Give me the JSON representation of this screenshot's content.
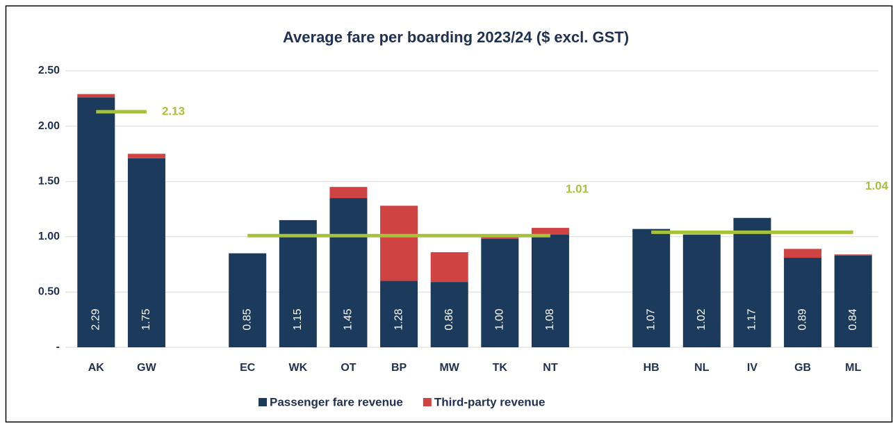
{
  "chart_data": {
    "type": "stacked_bar",
    "title": "Average fare per boarding 2023/24 ($ excl. GST)",
    "categories": [
      "AK",
      "GW",
      null,
      "EC",
      "WK",
      "OT",
      "BP",
      "MW",
      "TK",
      "NT",
      null,
      "HB",
      "NL",
      "IV",
      "GB",
      "ML"
    ],
    "series": [
      {
        "name": "Passenger fare revenue",
        "color": "#1b3a5c",
        "values": [
          2.26,
          1.71,
          null,
          0.85,
          1.15,
          1.35,
          0.6,
          0.59,
          0.98,
          1.02,
          null,
          1.07,
          1.02,
          1.17,
          0.81,
          0.83
        ]
      },
      {
        "name": "Third-party revenue",
        "color": "#d04343",
        "values": [
          0.03,
          0.04,
          null,
          0,
          0,
          0.1,
          0.68,
          0.27,
          0.02,
          0.06,
          null,
          0,
          0,
          0,
          0.08,
          0.01
        ]
      }
    ],
    "totals": [
      2.29,
      1.75,
      null,
      0.85,
      1.15,
      1.45,
      1.28,
      0.86,
      1.0,
      1.08,
      null,
      1.07,
      1.02,
      1.17,
      0.89,
      0.84
    ],
    "value_labels": [
      "2.29",
      "1.75",
      null,
      "0.85",
      "1.15",
      "1.45",
      "1.28",
      "0.86",
      "1.00",
      "1.08",
      null,
      "1.07",
      "1.02",
      "1.17",
      "0.89",
      "0.84"
    ],
    "averages": [
      {
        "value": 2.13,
        "categories": [
          "AK",
          "GW"
        ],
        "color": "#a6c23a"
      },
      {
        "value": 1.01,
        "categories": [
          "EC",
          "NT"
        ],
        "color": "#a6c23a"
      },
      {
        "value": 1.04,
        "categories": [
          "HB",
          "ML"
        ],
        "color": "#a6c23a"
      }
    ],
    "ylim": [
      0,
      2.5
    ],
    "yticks": [
      {
        "value": 0,
        "label": "-"
      },
      {
        "value": 0.5,
        "label": "0.50"
      },
      {
        "value": 1,
        "label": "1.00"
      },
      {
        "value": 1.5,
        "label": "1.50"
      },
      {
        "value": 2,
        "label": "2.00"
      },
      {
        "value": 2.5,
        "label": "2.50"
      }
    ],
    "grid": true,
    "legend": "bottom"
  }
}
